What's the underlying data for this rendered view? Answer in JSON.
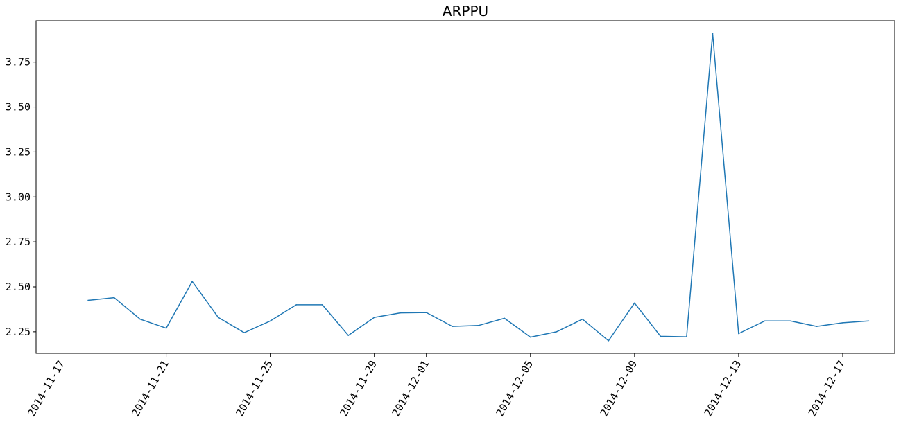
{
  "chart_data": {
    "type": "line",
    "title": "ARPPU",
    "xlabel": "",
    "ylabel": "",
    "x_type": "date",
    "xlim": [
      "2014-11-16",
      "2014-12-19"
    ],
    "ylim": [
      2.13,
      3.98
    ],
    "grid": false,
    "color": "#1f77b4",
    "x_ticks": [
      "2014-11-17",
      "2014-11-21",
      "2014-11-25",
      "2014-11-29",
      "2014-12-01",
      "2014-12-05",
      "2014-12-09",
      "2014-12-13",
      "2014-12-17"
    ],
    "y_ticks": [
      2.25,
      2.5,
      2.75,
      3.0,
      3.25,
      3.5,
      3.75
    ],
    "y_tick_labels": [
      "2.25",
      "2.50",
      "2.75",
      "3.00",
      "3.25",
      "3.50",
      "3.75"
    ],
    "series": [
      {
        "x": [
          "2014-11-18",
          "2014-11-19",
          "2014-11-20",
          "2014-11-21",
          "2014-11-22",
          "2014-11-23",
          "2014-11-24",
          "2014-11-25",
          "2014-11-26",
          "2014-11-27",
          "2014-11-28",
          "2014-11-29",
          "2014-11-30",
          "2014-12-01",
          "2014-12-02",
          "2014-12-03",
          "2014-12-04",
          "2014-12-05",
          "2014-12-06",
          "2014-12-07",
          "2014-12-08",
          "2014-12-09",
          "2014-12-10",
          "2014-12-11",
          "2014-12-12",
          "2014-12-13",
          "2014-12-14",
          "2014-12-15",
          "2014-12-16",
          "2014-12-17",
          "2014-12-18"
        ],
        "values": [
          2.425,
          2.44,
          2.32,
          2.27,
          2.53,
          2.33,
          2.245,
          2.31,
          2.4,
          2.4,
          2.23,
          2.33,
          2.355,
          2.357,
          2.28,
          2.285,
          2.325,
          2.22,
          2.25,
          2.32,
          2.2,
          2.41,
          2.225,
          2.222,
          3.91,
          2.24,
          2.31,
          2.31,
          2.28,
          2.3,
          2.31
        ]
      }
    ]
  }
}
